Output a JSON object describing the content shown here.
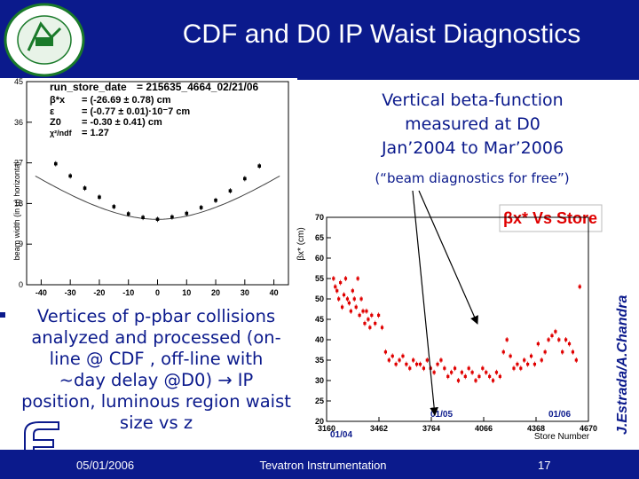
{
  "slide": {
    "title": "CDF and D0 IP Waist Diagnostics",
    "vertical_text_lines": [
      "Vertical beta-function",
      "measured at D0",
      "Jan’2004 to Mar’2006"
    ],
    "free_text": "(“beam diagnostics for free”)",
    "bullet_text_lines": [
      "Vertices of p-pbar collisions",
      "analyzed  and processed (on-",
      "line @ CDF , off-line with",
      "~day delay  @D0)  → IP",
      "position, luminous region waist",
      "size vs z"
    ],
    "credit": "J.Estrada/A.Chandra",
    "colors": {
      "title_bar": "#0b1a8c",
      "text_blue": "#0b1a8c",
      "marker_red": "#e00000"
    }
  },
  "footer": {
    "date": "05/01/2006",
    "center": "Tevatron Instrumentation",
    "page": "17"
  },
  "left_chart": {
    "stats": {
      "header_label": "run_store_date",
      "header_value": "= 215635_4664_02/21/06",
      "rows": [
        {
          "label": "β*x",
          "value": "= (-26.69 ± 0.78) cm"
        },
        {
          "label": "ε",
          "value": "= (-0.77 ± 0.01)·10⁻7 cm"
        },
        {
          "label": "Z0",
          "value": "= -0.30 ± 0.41) cm"
        },
        {
          "label": "χ²/ndf",
          "value": "= 1.27"
        }
      ]
    }
  },
  "chart_data": [
    {
      "type": "scatter",
      "ylabel": "beam width (in µ) horizontal",
      "xlim": [
        -45,
        45
      ],
      "ylim": [
        0,
        45
      ],
      "xticks": [
        "-40",
        "-30",
        "-20",
        "-10",
        "0",
        "10",
        "20",
        "30",
        "40"
      ],
      "yticks": [
        "0",
        "9",
        "18",
        "27",
        "36",
        "45"
      ],
      "series": [
        {
          "x": [
            -35,
            -30,
            -25,
            -20,
            -15,
            -10,
            -5,
            0,
            5,
            10,
            15,
            20,
            25,
            30,
            35
          ],
          "y": [
            26.8,
            24.1,
            21.4,
            19.4,
            17.3,
            15.7,
            14.9,
            14.5,
            15.0,
            15.8,
            17.1,
            18.7,
            20.8,
            23.5,
            26.3
          ]
        }
      ]
    },
    {
      "type": "scatter",
      "title": "βx* Vs Store",
      "xlabel": "Store Number",
      "ylabel": "βx* (cm)",
      "xlim": [
        3160,
        4670
      ],
      "ylim": [
        20,
        70
      ],
      "xticks": [
        "3160",
        "3462",
        "3764",
        "4066",
        "4368",
        "4670"
      ],
      "yticks": [
        "20",
        "25",
        "30",
        "35",
        "40",
        "45",
        "50",
        "55",
        "60",
        "65",
        "70"
      ],
      "annotations": [
        "01/04",
        "01/05",
        "01/06"
      ],
      "series": [
        {
          "x": [
            3200,
            3210,
            3220,
            3230,
            3240,
            3250,
            3260,
            3270,
            3280,
            3290,
            3300,
            3310,
            3320,
            3330,
            3340,
            3350,
            3360,
            3370,
            3380,
            3390,
            3400,
            3410,
            3420,
            3440,
            3460,
            3480,
            3500,
            3520,
            3540,
            3560,
            3580,
            3600,
            3620,
            3640,
            3660,
            3680,
            3700,
            3720,
            3740,
            3760,
            3780,
            3800,
            3820,
            3840,
            3860,
            3880,
            3900,
            3920,
            3940,
            3960,
            3980,
            4000,
            4020,
            4040,
            4060,
            4080,
            4100,
            4120,
            4140,
            4160,
            4180,
            4200,
            4220,
            4240,
            4260,
            4280,
            4300,
            4320,
            4340,
            4360,
            4380,
            4400,
            4420,
            4440,
            4460,
            4480,
            4500,
            4520,
            4540,
            4560,
            4580,
            4600,
            4620
          ],
          "y": [
            55,
            53,
            52,
            50,
            54,
            48,
            51,
            55,
            50,
            49,
            47,
            52,
            50,
            48,
            55,
            46,
            50,
            47,
            44,
            47,
            45,
            43,
            46,
            44,
            46,
            43,
            37,
            35,
            36,
            34,
            35,
            36,
            34,
            33,
            35,
            34,
            34,
            33,
            35,
            33,
            32,
            34,
            35,
            33,
            31,
            32,
            33,
            30,
            32,
            31,
            33,
            32,
            30,
            31,
            33,
            32,
            31,
            30,
            32,
            31,
            37,
            40,
            36,
            33,
            34,
            33,
            35,
            34,
            36,
            34,
            39,
            35,
            37,
            40,
            41,
            42,
            40,
            37,
            40,
            39,
            37,
            35,
            53
          ]
        }
      ]
    }
  ]
}
